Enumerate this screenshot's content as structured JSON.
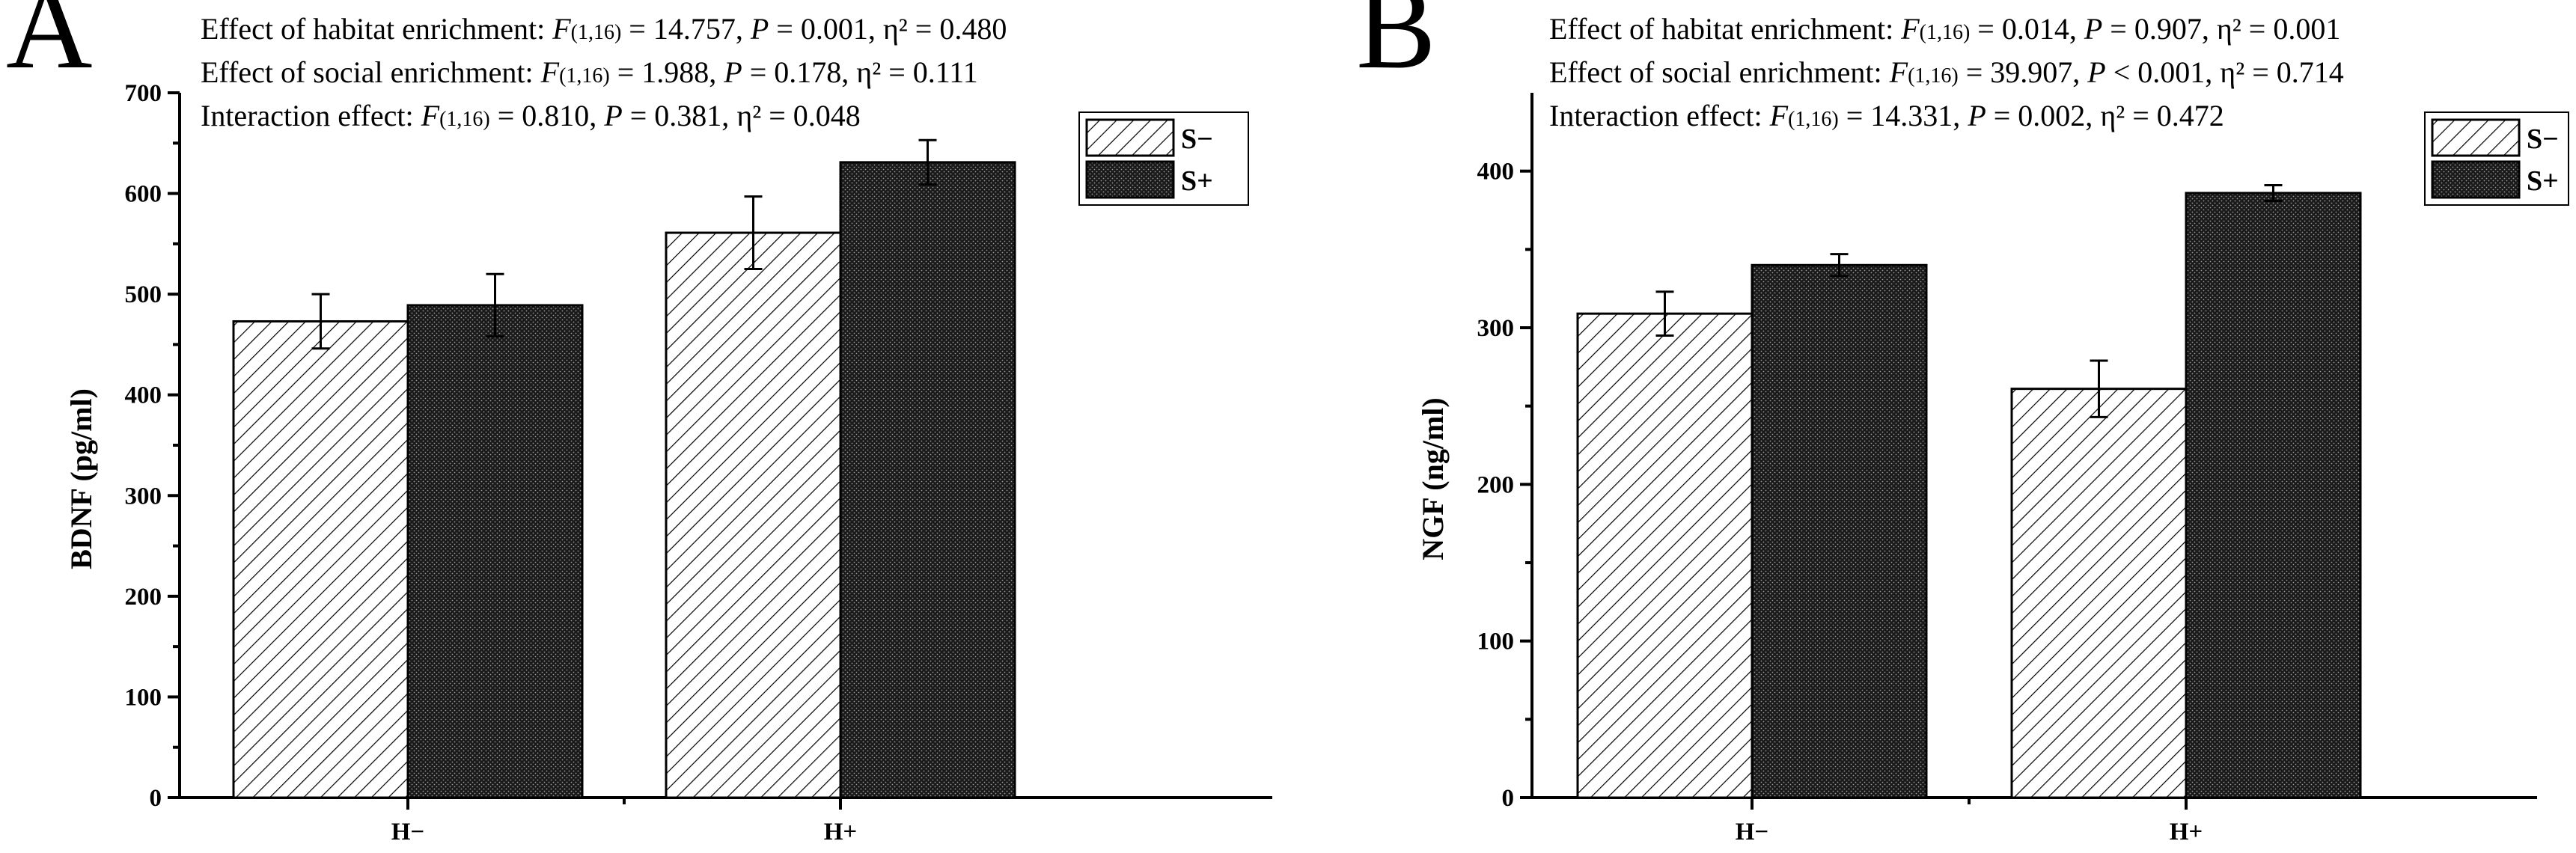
{
  "chart_data": [
    {
      "type": "bar",
      "panel": "A",
      "ylabel": "BDNF (pg/ml)",
      "xlabel": "",
      "ylim": [
        0,
        700
      ],
      "yticks": [
        "0",
        "100",
        "200",
        "300",
        "400",
        "500",
        "600",
        "700"
      ],
      "ytick_values": [
        0,
        100,
        200,
        300,
        400,
        500,
        600,
        700
      ],
      "categories": [
        "H−",
        "H+"
      ],
      "series": [
        {
          "name": "S−",
          "pattern": "hatch",
          "values": [
            473,
            561
          ],
          "errors": [
            27,
            36
          ]
        },
        {
          "name": "S+",
          "pattern": "dots",
          "values": [
            489,
            631
          ],
          "errors": [
            31,
            22
          ]
        }
      ],
      "stats": [
        {
          "prefix": "Effect of habitat enrichment: ",
          "F": "F",
          "df": "(1,16)",
          "rest": " = 14.757, ",
          "P": "P",
          "prest": " = 0.001, ",
          "eta": "η² = 0.480"
        },
        {
          "prefix": "Effect of social enrichment: ",
          "F": "F",
          "df": "(1,16)",
          "rest": " = 1.988, ",
          "P": "P",
          "prest": " = 0.178, ",
          "eta": "η² = 0.111"
        },
        {
          "prefix": "Interaction effect: ",
          "F": "F",
          "df": "(1,16)",
          "rest": " = 0.810, ",
          "P": "P",
          "prest": " = 0.381, ",
          "eta": "η² = 0.048"
        }
      ],
      "legend_position": "top-right"
    },
    {
      "type": "bar",
      "panel": "B",
      "ylabel": "NGF (ng/ml)",
      "xlabel": "",
      "ylim": [
        0,
        450
      ],
      "yticks": [
        "0",
        "100",
        "200",
        "300",
        "400"
      ],
      "ytick_values": [
        0,
        100,
        200,
        300,
        400
      ],
      "categories": [
        "H−",
        "H+"
      ],
      "series": [
        {
          "name": "S−",
          "pattern": "hatch",
          "values": [
            309,
            261
          ],
          "errors": [
            14,
            18
          ]
        },
        {
          "name": "S+",
          "pattern": "dots",
          "values": [
            340,
            386
          ],
          "errors": [
            7,
            5
          ]
        }
      ],
      "stats": [
        {
          "prefix": "Effect of habitat enrichment: ",
          "F": "F",
          "df": "(1,16)",
          "rest": " = 0.014, ",
          "P": "P",
          "prest": " = 0.907, ",
          "eta": "η² = 0.001"
        },
        {
          "prefix": "Effect of social enrichment: ",
          "F": "F",
          "df": "(1,16)",
          "rest": " = 39.907, ",
          "P": "P",
          "prest": " < 0.001, ",
          "eta": "η² = 0.714"
        },
        {
          "prefix": "Interaction effect: ",
          "F": "F",
          "df": "(1,16)",
          "rest": " = 14.331, ",
          "P": "P",
          "prest": " = 0.002, ",
          "eta": "η² = 0.472"
        }
      ],
      "legend_position": "top-right"
    }
  ]
}
